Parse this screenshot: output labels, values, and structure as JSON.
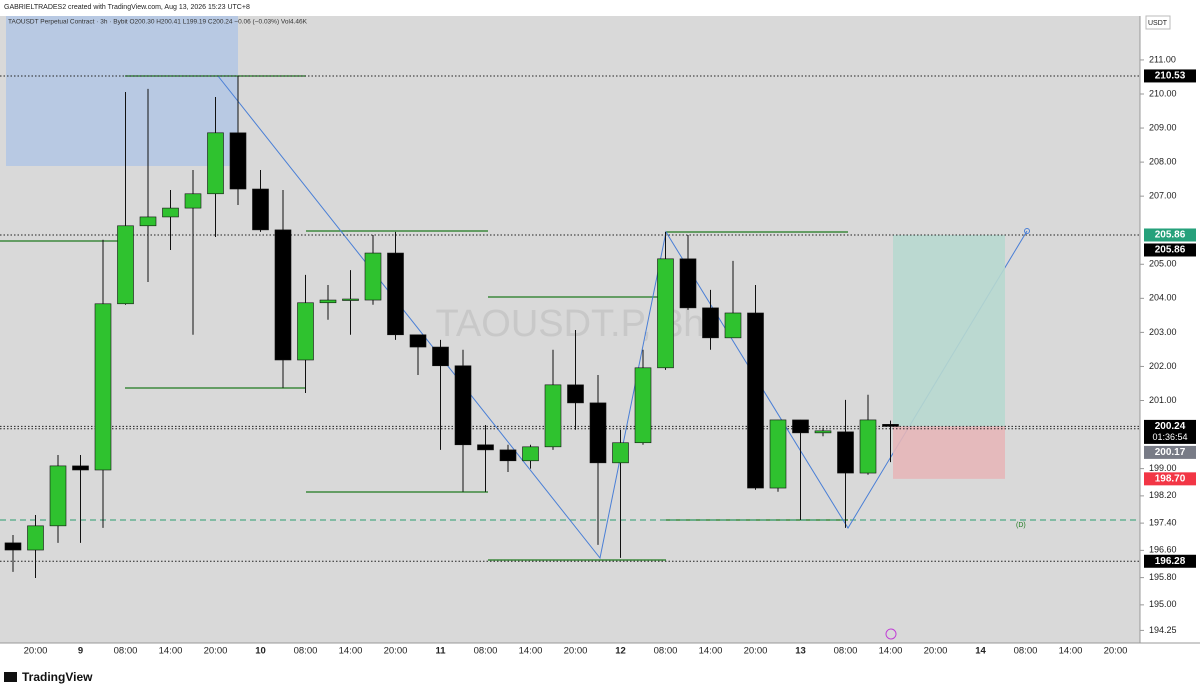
{
  "chart_data": {
    "type": "candlestick",
    "header": "GABRIELTRADES2 created with TradingView.com, Aug 13, 2026 15:23 UTC+8",
    "legend_text": "TAOUSDT Perpetual Contract · 3h · Bybit   O200.30 H200.41 L199.19 C200.24 −0.06 (−0.03%) Vol4.46K",
    "watermark": "TAOUSDT.P, 3h",
    "currency": "USDT",
    "annotation": "(D)",
    "footer": "TradingView",
    "up_color": "#2fc22f",
    "down_color": "#000000",
    "categories": [
      null,
      "20:00",
      null,
      "9",
      null,
      "08:00",
      null,
      "14:00",
      null,
      "20:00",
      null,
      "10",
      null,
      "08:00",
      null,
      "14:00",
      null,
      "20:00",
      null,
      "11",
      null,
      "08:00",
      null,
      "14:00",
      null,
      "20:00",
      null,
      "12",
      null,
      "08:00",
      null,
      "14:00",
      null,
      "20:00",
      null,
      "13",
      null,
      "08:00",
      null,
      "14:00",
      null,
      "20:00",
      null,
      "14",
      null,
      "08:00",
      null,
      "14:00",
      null,
      "20:00"
    ],
    "open": [
      196.82,
      196.61,
      197.32,
      199.08,
      198.96,
      203.84,
      206.13,
      206.39,
      206.65,
      207.07,
      208.86,
      207.21,
      206.01,
      202.19,
      203.87,
      203.95,
      203.95,
      205.33,
      202.93,
      202.57,
      202.02,
      199.7,
      199.55,
      199.23,
      199.64,
      201.46,
      200.93,
      199.17,
      199.76,
      201.96,
      205.16,
      203.72,
      202.84,
      203.57,
      198.43,
      200.43,
      200.05,
      200.08,
      198.87,
      200.3,
      null,
      null,
      null,
      null,
      null,
      null,
      null,
      null,
      null,
      null
    ],
    "high": [
      197.05,
      197.64,
      199.4,
      199.4,
      205.72,
      210.06,
      210.15,
      207.18,
      207.77,
      209.91,
      210.53,
      207.77,
      207.18,
      204.69,
      204.39,
      204.83,
      205.86,
      205.95,
      202.93,
      202.78,
      202.49,
      200.28,
      199.7,
      199.7,
      202.49,
      203.07,
      201.75,
      200.14,
      202.49,
      205.95,
      205.86,
      204.25,
      205.1,
      204.39,
      200.43,
      200.43,
      200.2,
      201.02,
      201.17,
      200.41,
      null,
      null,
      null,
      null,
      null,
      null,
      null,
      null,
      null,
      null
    ],
    "low": [
      195.97,
      195.79,
      196.82,
      196.82,
      197.26,
      203.81,
      204.48,
      205.42,
      202.93,
      205.8,
      206.74,
      205.95,
      201.37,
      201.22,
      203.37,
      202.93,
      203.81,
      202.78,
      201.75,
      199.55,
      198.32,
      198.32,
      198.9,
      199.0,
      199.55,
      200.14,
      196.76,
      196.38,
      199.7,
      201.9,
      203.66,
      202.49,
      202.84,
      198.38,
      198.32,
      197.49,
      199.95,
      197.26,
      198.82,
      199.19,
      null,
      null,
      null,
      null,
      null,
      null,
      null,
      null,
      null,
      null
    ],
    "close": [
      196.61,
      197.32,
      199.08,
      198.96,
      203.84,
      206.13,
      206.39,
      206.65,
      207.07,
      208.86,
      207.21,
      206.01,
      202.19,
      203.87,
      203.95,
      203.98,
      205.33,
      202.93,
      202.57,
      202.02,
      199.7,
      199.55,
      199.23,
      199.64,
      201.46,
      200.93,
      199.17,
      199.76,
      201.96,
      205.16,
      203.72,
      202.84,
      203.57,
      198.43,
      200.43,
      200.05,
      200.11,
      198.87,
      200.43,
      200.24,
      null,
      null,
      null,
      null,
      null,
      null,
      null,
      null,
      null,
      null
    ],
    "ylim": [
      193.88,
      212.29
    ],
    "yticks": [
      {
        "value": 194.25,
        "label": "194.25"
      },
      {
        "value": 195,
        "label": "195.00"
      },
      {
        "value": 195.8,
        "label": "195.80"
      },
      {
        "value": 196.6,
        "label": "196.60"
      },
      {
        "value": 197.4,
        "label": "197.40"
      },
      {
        "value": 198.2,
        "label": "198.20"
      },
      {
        "value": 199,
        "label": "199.00"
      },
      {
        "value": 201,
        "label": "201.00"
      },
      {
        "value": 202,
        "label": "202.00"
      },
      {
        "value": 203,
        "label": "203.00"
      },
      {
        "value": 204,
        "label": "204.00"
      },
      {
        "value": 205,
        "label": "205.00"
      },
      {
        "value": 207,
        "label": "207.00"
      },
      {
        "value": 208,
        "label": "208.00"
      },
      {
        "value": 209,
        "label": "209.00"
      },
      {
        "value": 210,
        "label": "210.00"
      },
      {
        "value": 211,
        "label": "211.00"
      }
    ],
    "price_labels": [
      {
        "value": 210.53,
        "label": "210.53",
        "color": "#000000"
      },
      {
        "value": 205.86,
        "label": "205.86",
        "color": "#26a17b"
      },
      {
        "value": 205.86,
        "label": "205.86",
        "color": "#000000"
      },
      {
        "value": 200.24,
        "label": "200.24",
        "color": "#000000",
        "countdown": "01:36:54"
      },
      {
        "value": 200.17,
        "label": "200.17",
        "color": "#787b86"
      },
      {
        "value": 198.7,
        "label": "198.70",
        "color": "#f23645"
      },
      {
        "value": 196.28,
        "label": "196.28",
        "color": "#000000"
      }
    ]
  }
}
